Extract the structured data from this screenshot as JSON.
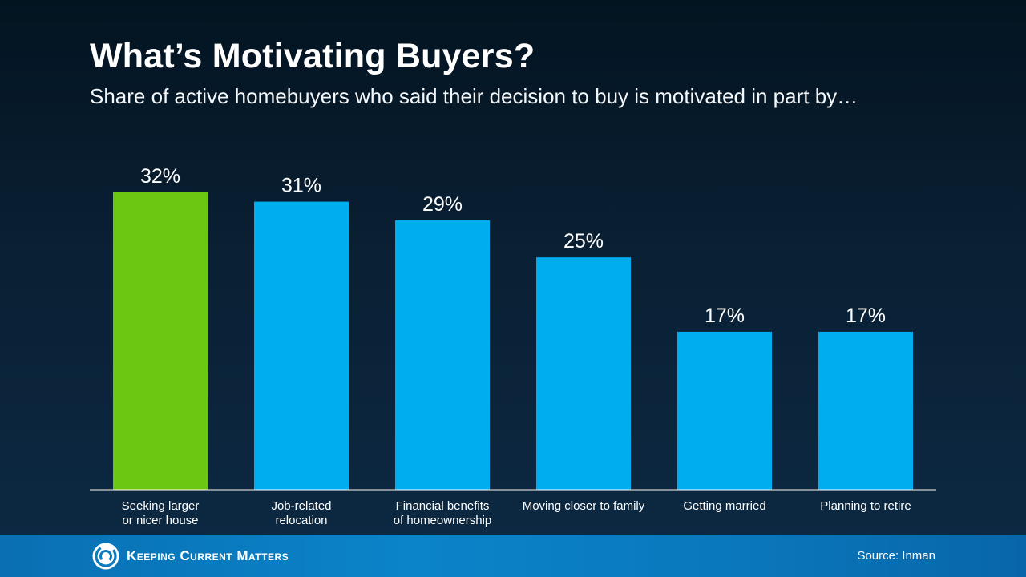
{
  "header": {
    "title": "What’s Motivating Buyers?",
    "subtitle": "Share of active homebuyers who said their decision to buy is motivated in part by…"
  },
  "chart_data": {
    "type": "bar",
    "title": "What’s Motivating Buyers?",
    "subtitle": "Share of active homebuyers who said their decision to buy is motivated in part by…",
    "categories": [
      [
        "Seeking larger",
        "or nicer house"
      ],
      [
        "Job-related",
        "relocation"
      ],
      [
        "Financial benefits",
        "of homeownership"
      ],
      [
        "Moving closer to family"
      ],
      [
        "Getting married"
      ],
      [
        "Planning to retire"
      ]
    ],
    "values": [
      32,
      31,
      29,
      25,
      17,
      17
    ],
    "value_labels": [
      "32%",
      "31%",
      "29%",
      "25%",
      "17%",
      "17%"
    ],
    "unit": "%",
    "ylim": [
      0,
      32
    ],
    "grid": false,
    "highlight_index": 0,
    "colors": {
      "highlight": "#6cc712",
      "bar": "#00adee",
      "axis": "#ffffff"
    }
  },
  "footer": {
    "brand": "Keeping Current Matters",
    "source": "Source: Inman"
  },
  "icons": {
    "logo": "kcm-swirl-logo-icon"
  }
}
